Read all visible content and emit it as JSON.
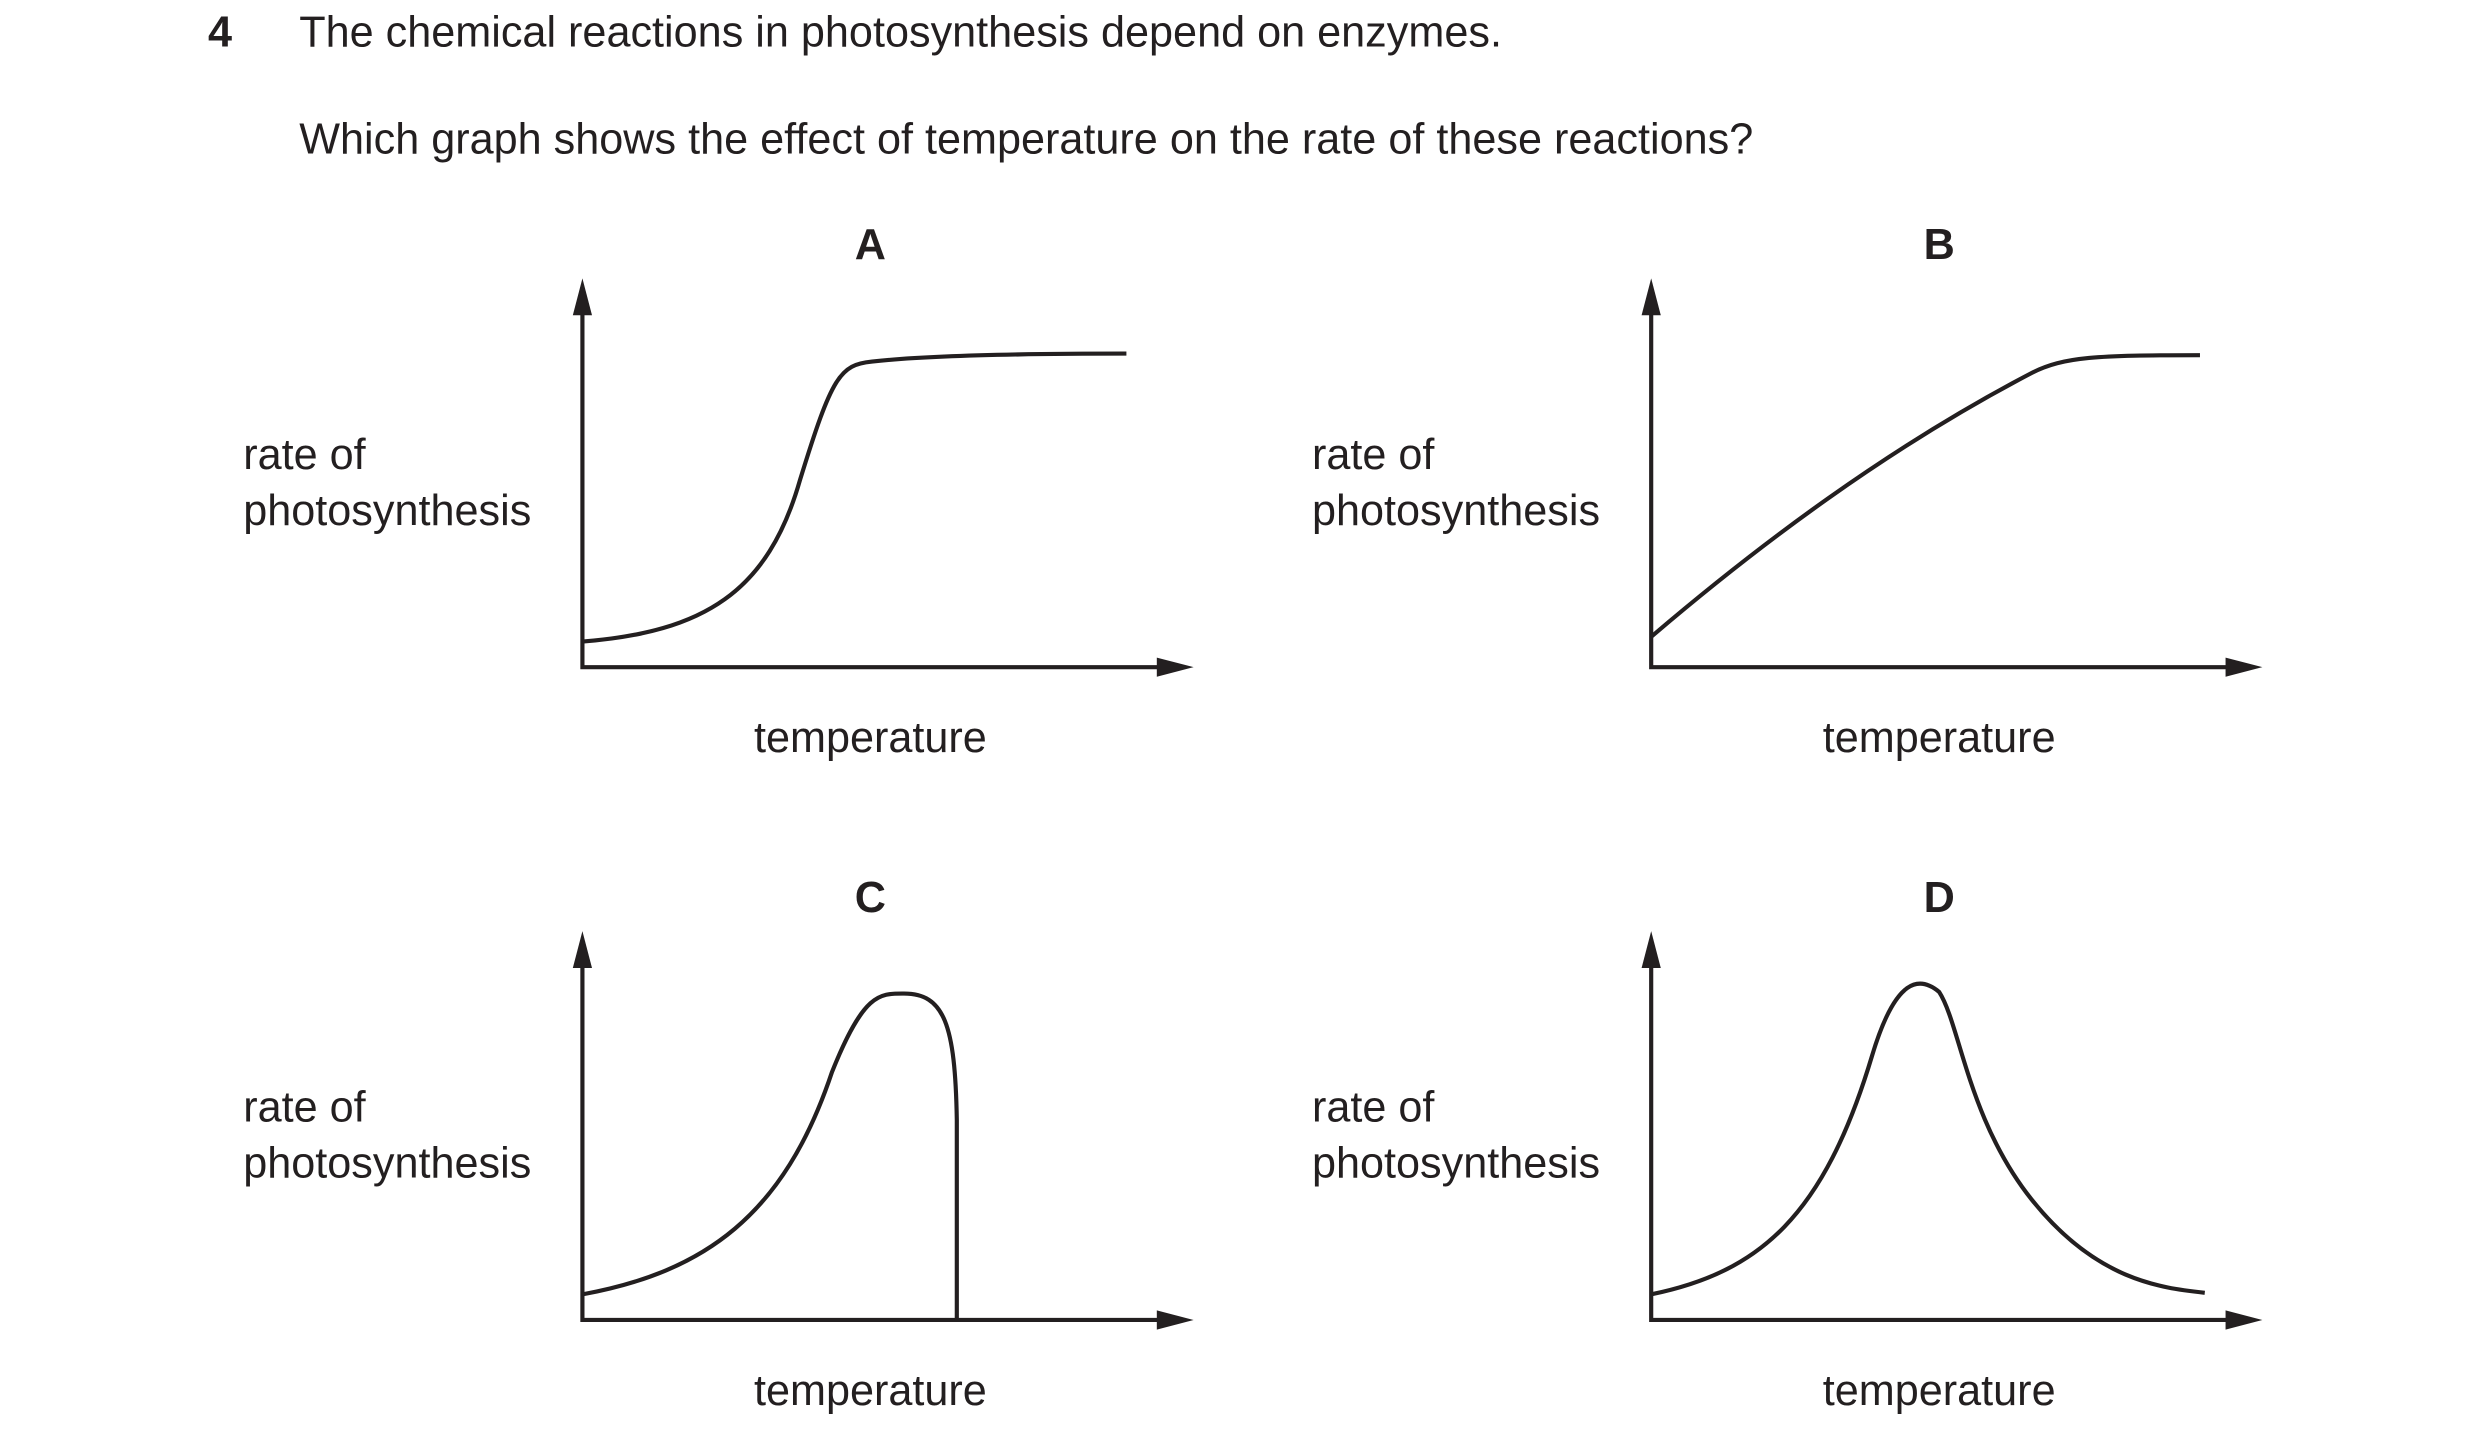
{
  "question": {
    "number": "4",
    "stem": "The chemical reactions in photosynthesis depend on enzymes.",
    "prompt": "Which graph shows the effect of temperature on the rate of these reactions?"
  },
  "options": [
    {
      "letter": "A",
      "y_label": [
        "rate of",
        "photosynthesis"
      ],
      "x_label": "temperature"
    },
    {
      "letter": "B",
      "y_label": [
        "rate of",
        "photosynthesis"
      ],
      "x_label": "temperature"
    },
    {
      "letter": "C",
      "y_label": [
        "rate of",
        "photosynthesis"
      ],
      "x_label": "temperature"
    },
    {
      "letter": "D",
      "y_label": [
        "rate of",
        "photosynthesis"
      ],
      "x_label": "temperature"
    }
  ]
}
